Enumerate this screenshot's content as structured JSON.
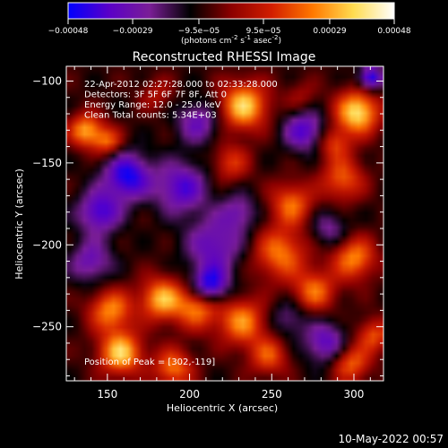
{
  "chart_data": {
    "type": "heatmap",
    "title": "Reconstructed RHESSI Image",
    "xlabel": "Heliocentric X (arcsec)",
    "ylabel": "Heliocentric Y (arcsec)",
    "xlim": [
      125,
      318
    ],
    "ylim": [
      -283,
      -91
    ],
    "xticks": [
      150,
      200,
      250,
      300
    ],
    "yticks": [
      -100,
      -150,
      -200,
      -250
    ],
    "colorbar": {
      "min": -0.00048,
      "max": 0.00048,
      "tick_values": [
        -0.00048,
        -0.00029,
        -9.5e-05,
        9.5e-05,
        0.00029,
        0.00048
      ],
      "tick_labels": [
        "-0.00048",
        "-0.00029",
        "-9.5e-05",
        "9.5e-05",
        "0.00029",
        "0.00048"
      ],
      "units_base": "(photons cm",
      "units_exp1": "-2",
      "units_mid1": " s",
      "units_exp2": "-1",
      "units_mid2": " asec",
      "units_exp3": "-2",
      "units_end": ")",
      "colors": [
        "#0000ff",
        "#5a00c8",
        "#7a1e96",
        "#000000",
        "#8c0000",
        "#d21e00",
        "#ff7800",
        "#ffdc50",
        "#ffffff"
      ]
    },
    "annotations": [
      "22-Apr-2012 02:27:28.000 to 02:33:28.000",
      "Detectors: 3F 5F 6F 7F 8F, Att 0",
      "Energy Range: 12.0 - 25.0 keV",
      "Clean     Total counts: 5.34E+03"
    ],
    "peak_label": "Position of Peak = [302,-119]",
    "peak": [
      302,
      -119
    ],
    "grid": false,
    "sources": [
      {
        "x": 302,
        "y": -119,
        "value": 0.00048,
        "r": 9
      },
      {
        "x": 233,
        "y": -115,
        "value": 0.00044,
        "r": 10
      },
      {
        "x": 288,
        "y": -138,
        "value": 0.00024,
        "r": 7
      },
      {
        "x": 293,
        "y": -160,
        "value": 0.00028,
        "r": 9
      },
      {
        "x": 262,
        "y": -175,
        "value": 0.0003,
        "r": 9
      },
      {
        "x": 255,
        "y": -205,
        "value": 0.00032,
        "r": 11
      },
      {
        "x": 276,
        "y": -228,
        "value": 0.0003,
        "r": 9
      },
      {
        "x": 225,
        "y": -150,
        "value": 0.00022,
        "r": 8
      },
      {
        "x": 232,
        "y": -247,
        "value": 0.00034,
        "r": 10
      },
      {
        "x": 205,
        "y": -238,
        "value": 0.00034,
        "r": 9
      },
      {
        "x": 183,
        "y": -233,
        "value": 0.0004,
        "r": 9
      },
      {
        "x": 152,
        "y": -240,
        "value": 0.00034,
        "r": 9
      },
      {
        "x": 158,
        "y": -266,
        "value": 0.00044,
        "r": 9
      },
      {
        "x": 190,
        "y": -275,
        "value": 0.00032,
        "r": 8
      },
      {
        "x": 137,
        "y": -130,
        "value": 0.00038,
        "r": 7
      },
      {
        "x": 150,
        "y": -137,
        "value": 0.00028,
        "r": 6
      },
      {
        "x": 300,
        "y": -208,
        "value": 0.00034,
        "r": 9
      },
      {
        "x": 248,
        "y": -268,
        "value": 0.00026,
        "r": 8
      },
      {
        "x": 312,
        "y": -255,
        "value": 0.00026,
        "r": 7
      },
      {
        "x": 298,
        "y": -272,
        "value": 0.0003,
        "r": 8
      },
      {
        "x": 180,
        "y": -108,
        "value": 0.00014,
        "r": 7
      },
      {
        "x": 268,
        "y": -110,
        "value": 0.00012,
        "r": 7
      },
      {
        "x": 195,
        "y": -165,
        "value": -0.0003,
        "r": 11
      },
      {
        "x": 162,
        "y": -158,
        "value": -0.00038,
        "r": 10
      },
      {
        "x": 145,
        "y": -180,
        "value": -0.00032,
        "r": 9
      },
      {
        "x": 215,
        "y": -200,
        "value": -0.00026,
        "r": 12
      },
      {
        "x": 212,
        "y": -225,
        "value": -0.0004,
        "r": 8
      },
      {
        "x": 140,
        "y": -210,
        "value": -0.00024,
        "r": 9
      },
      {
        "x": 270,
        "y": -130,
        "value": -0.0003,
        "r": 9
      },
      {
        "x": 205,
        "y": -125,
        "value": -0.00024,
        "r": 9
      },
      {
        "x": 283,
        "y": -260,
        "value": -0.00028,
        "r": 9
      },
      {
        "x": 285,
        "y": -190,
        "value": -0.00018,
        "r": 8
      },
      {
        "x": 230,
        "y": -180,
        "value": -0.0002,
        "r": 8
      },
      {
        "x": 260,
        "y": -245,
        "value": -0.00016,
        "r": 8
      },
      {
        "x": 310,
        "y": -98,
        "value": -0.0004,
        "r": 5
      }
    ]
  },
  "footer": {
    "date": "10-May-2022 00:57"
  }
}
